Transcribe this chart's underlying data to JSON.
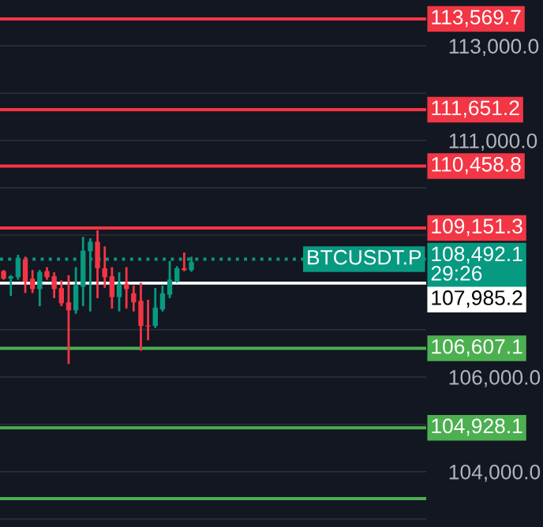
{
  "chart_data": {
    "type": "candlestick",
    "categories": [
      null,
      null,
      null,
      null,
      null,
      null,
      null,
      null,
      null,
      null,
      null,
      null,
      null,
      null,
      null,
      null,
      null,
      null,
      null,
      null,
      null,
      null,
      null,
      null,
      null,
      null,
      null,
      null,
      null,
      null,
      null,
      null,
      null,
      null,
      null,
      null,
      null,
      null,
      null,
      null,
      null,
      null,
      null,
      null,
      null,
      null,
      null,
      null,
      null,
      null,
      null,
      null,
      null,
      null,
      null,
      null,
      null,
      null,
      null
    ],
    "ohlc": [
      [
        108240,
        108240,
        108080,
        108080
      ],
      [
        108080,
        108130,
        107740,
        108130
      ],
      [
        108110,
        108560,
        108080,
        108520
      ],
      [
        108490,
        108520,
        107800,
        108020
      ],
      [
        108080,
        108240,
        107800,
        107860
      ],
      [
        107860,
        108240,
        107520,
        108220
      ],
      [
        108240,
        108300,
        108080,
        108110
      ],
      [
        108130,
        108190,
        107690,
        107860
      ],
      [
        107880,
        108020,
        107520,
        107560
      ],
      [
        107580,
        108130,
        106300,
        107410
      ],
      [
        107410,
        108300,
        107360,
        107940
      ],
      [
        107910,
        108940,
        107520,
        108670
      ],
      [
        108660,
        108910,
        107410,
        108860
      ],
      [
        108860,
        109080,
        107690,
        108300
      ],
      [
        108300,
        108740,
        107910,
        108110
      ],
      [
        108130,
        108300,
        107470,
        107690
      ],
      [
        107690,
        108190,
        107410,
        107970
      ],
      [
        107970,
        108300,
        107470,
        107860
      ],
      [
        107770,
        107910,
        107410,
        107580
      ],
      [
        107610,
        107970,
        106580,
        107080
      ],
      [
        107090,
        107610,
        106800,
        107070
      ],
      [
        107080,
        107860,
        107060,
        107470
      ],
      [
        107430,
        107910,
        107410,
        107770
      ],
      [
        107740,
        108430,
        107690,
        108060
      ],
      [
        108020,
        108320,
        108020,
        108300
      ],
      [
        108300,
        108610,
        108260,
        108260
      ],
      [
        108260,
        108520,
        108250,
        108430
      ],
      null,
      null,
      null,
      null,
      null,
      null,
      null,
      null,
      null,
      null,
      null,
      null,
      null,
      null,
      null,
      null,
      null,
      null,
      null,
      null,
      null,
      null,
      null,
      null,
      null,
      null,
      null,
      null,
      null,
      null,
      null,
      null
    ],
    "colors": [
      "#f23645",
      "#089981",
      "#089981",
      "#f23645",
      "#f23645",
      "#089981",
      "#f23645",
      "#f23645",
      "#f23645",
      "#f23645",
      "#089981",
      "#089981",
      "#089981",
      "#f23645",
      "#f23645",
      "#f23645",
      "#089981",
      "#f23645",
      "#f23645",
      "#f23645",
      "#f23645",
      "#089981",
      "#089981",
      "#089981",
      "#089981",
      "#f23645",
      "#089981",
      null,
      null,
      null,
      null,
      null,
      null,
      null,
      null,
      null,
      null,
      null,
      null,
      null,
      null,
      null,
      null,
      null,
      null,
      null,
      null,
      null,
      null,
      null,
      null,
      null,
      null,
      null,
      null,
      null,
      null,
      null,
      null
    ],
    "ylim": [
      102830,
      113970
    ],
    "yticks": [
      {
        "value": 103000,
        "label": null
      },
      {
        "value": 104000,
        "label": "104,000.0"
      },
      {
        "value": 105000,
        "label": null
      },
      {
        "value": 106000,
        "label": "106,000.0"
      },
      {
        "value": 107000,
        "label": null
      },
      {
        "value": 108000,
        "label": null
      },
      {
        "value": 109000,
        "label": null
      },
      {
        "value": 110000,
        "label": null
      },
      {
        "value": 111000,
        "label": "111,000.0"
      },
      {
        "value": 112000,
        "label": null
      },
      {
        "value": 113000,
        "label": "113,000.0"
      }
    ],
    "grid": "y",
    "ref_lines": [
      {
        "axis": "y",
        "value": 113569.7,
        "label": "113,569.7",
        "color": "#f23645",
        "line_style": "solid"
      },
      {
        "axis": "y",
        "value": 111651.2,
        "label": "111,651.2",
        "color": "#f23645",
        "line_style": "solid"
      },
      {
        "axis": "y",
        "value": 110458.8,
        "label": "110,458.8",
        "color": "#f23645",
        "line_style": "solid"
      },
      {
        "axis": "y",
        "value": 109151.3,
        "label": "109,151.3",
        "color": "#f23645",
        "line_style": "solid"
      },
      {
        "axis": "y",
        "value": 108492.1,
        "label": "108,492.1\n29:26",
        "color": "#089981",
        "line_style": "dotted"
      },
      {
        "axis": "y",
        "value": 107985.2,
        "label": "107,985.2",
        "color": "#ffffff",
        "line_style": "solid"
      },
      {
        "axis": "y",
        "value": 106607.1,
        "label": "106,607.1",
        "color": "#4caf50",
        "line_style": "solid"
      },
      {
        "axis": "y",
        "value": 104928.1,
        "label": "104,928.1",
        "color": "#4caf50",
        "line_style": "solid"
      },
      {
        "axis": "y",
        "value": 103430,
        "label": null,
        "color": "#4caf50",
        "line_style": "solid"
      }
    ],
    "annotations": [
      {
        "text": "BTCUSDT.P",
        "y": 108492.1
      }
    ]
  }
}
